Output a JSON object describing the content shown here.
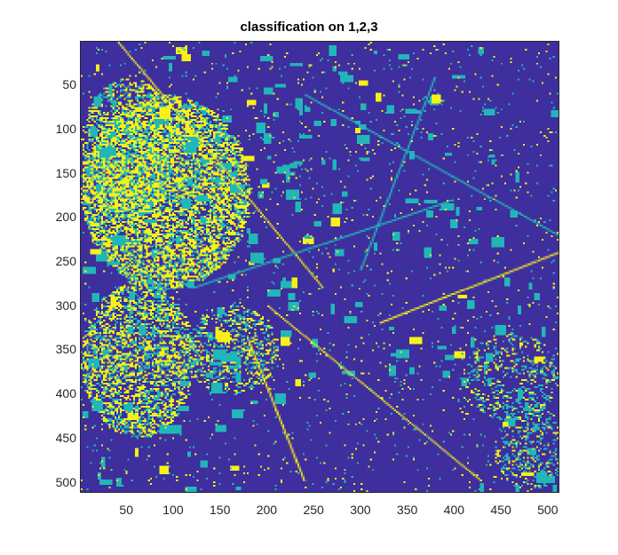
{
  "title": "classification on 1,2,3",
  "colors": {
    "class_1": "#3e2e9e",
    "class_2": "#21b6b8",
    "class_3": "#f8f016"
  },
  "xaxis": {
    "ticks": [
      "50",
      "100",
      "150",
      "200",
      "250",
      "300",
      "350",
      "400",
      "450",
      "500"
    ],
    "range": [
      1,
      512
    ]
  },
  "yaxis": {
    "ticks": [
      "50",
      "100",
      "150",
      "200",
      "250",
      "300",
      "350",
      "400",
      "450",
      "500"
    ],
    "range": [
      1,
      512
    ]
  }
}
